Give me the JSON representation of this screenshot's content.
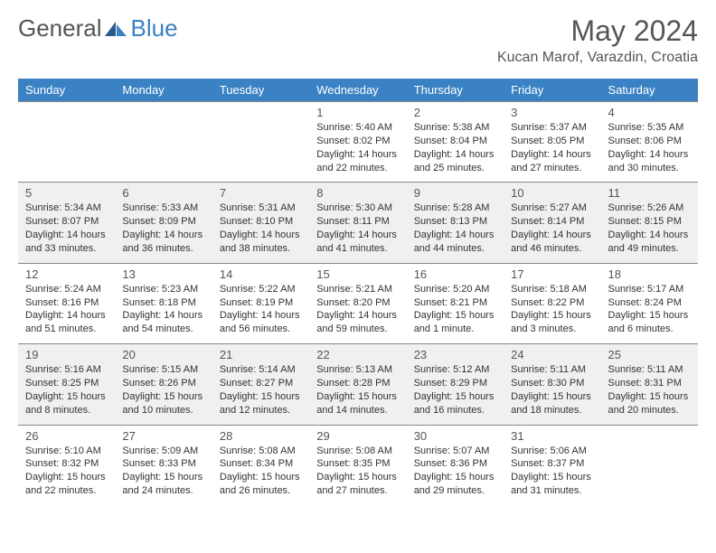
{
  "logo": {
    "general": "General",
    "blue": "Blue"
  },
  "title": "May 2024",
  "location": "Kucan Marof, Varazdin, Croatia",
  "dayHeaders": [
    "Sunday",
    "Monday",
    "Tuesday",
    "Wednesday",
    "Thursday",
    "Friday",
    "Saturday"
  ],
  "colors": {
    "headerBg": "#3b82c4",
    "headerText": "#ffffff",
    "altRowBg": "#f0f0f0",
    "textColor": "#333333",
    "titleColor": "#555555",
    "borderColor": "#888888"
  },
  "weeks": [
    [
      {
        "day": "",
        "sunrise": "",
        "sunset": "",
        "daylight": ""
      },
      {
        "day": "",
        "sunrise": "",
        "sunset": "",
        "daylight": ""
      },
      {
        "day": "",
        "sunrise": "",
        "sunset": "",
        "daylight": ""
      },
      {
        "day": "1",
        "sunrise": "Sunrise: 5:40 AM",
        "sunset": "Sunset: 8:02 PM",
        "daylight": "Daylight: 14 hours and 22 minutes."
      },
      {
        "day": "2",
        "sunrise": "Sunrise: 5:38 AM",
        "sunset": "Sunset: 8:04 PM",
        "daylight": "Daylight: 14 hours and 25 minutes."
      },
      {
        "day": "3",
        "sunrise": "Sunrise: 5:37 AM",
        "sunset": "Sunset: 8:05 PM",
        "daylight": "Daylight: 14 hours and 27 minutes."
      },
      {
        "day": "4",
        "sunrise": "Sunrise: 5:35 AM",
        "sunset": "Sunset: 8:06 PM",
        "daylight": "Daylight: 14 hours and 30 minutes."
      }
    ],
    [
      {
        "day": "5",
        "sunrise": "Sunrise: 5:34 AM",
        "sunset": "Sunset: 8:07 PM",
        "daylight": "Daylight: 14 hours and 33 minutes."
      },
      {
        "day": "6",
        "sunrise": "Sunrise: 5:33 AM",
        "sunset": "Sunset: 8:09 PM",
        "daylight": "Daylight: 14 hours and 36 minutes."
      },
      {
        "day": "7",
        "sunrise": "Sunrise: 5:31 AM",
        "sunset": "Sunset: 8:10 PM",
        "daylight": "Daylight: 14 hours and 38 minutes."
      },
      {
        "day": "8",
        "sunrise": "Sunrise: 5:30 AM",
        "sunset": "Sunset: 8:11 PM",
        "daylight": "Daylight: 14 hours and 41 minutes."
      },
      {
        "day": "9",
        "sunrise": "Sunrise: 5:28 AM",
        "sunset": "Sunset: 8:13 PM",
        "daylight": "Daylight: 14 hours and 44 minutes."
      },
      {
        "day": "10",
        "sunrise": "Sunrise: 5:27 AM",
        "sunset": "Sunset: 8:14 PM",
        "daylight": "Daylight: 14 hours and 46 minutes."
      },
      {
        "day": "11",
        "sunrise": "Sunrise: 5:26 AM",
        "sunset": "Sunset: 8:15 PM",
        "daylight": "Daylight: 14 hours and 49 minutes."
      }
    ],
    [
      {
        "day": "12",
        "sunrise": "Sunrise: 5:24 AM",
        "sunset": "Sunset: 8:16 PM",
        "daylight": "Daylight: 14 hours and 51 minutes."
      },
      {
        "day": "13",
        "sunrise": "Sunrise: 5:23 AM",
        "sunset": "Sunset: 8:18 PM",
        "daylight": "Daylight: 14 hours and 54 minutes."
      },
      {
        "day": "14",
        "sunrise": "Sunrise: 5:22 AM",
        "sunset": "Sunset: 8:19 PM",
        "daylight": "Daylight: 14 hours and 56 minutes."
      },
      {
        "day": "15",
        "sunrise": "Sunrise: 5:21 AM",
        "sunset": "Sunset: 8:20 PM",
        "daylight": "Daylight: 14 hours and 59 minutes."
      },
      {
        "day": "16",
        "sunrise": "Sunrise: 5:20 AM",
        "sunset": "Sunset: 8:21 PM",
        "daylight": "Daylight: 15 hours and 1 minute."
      },
      {
        "day": "17",
        "sunrise": "Sunrise: 5:18 AM",
        "sunset": "Sunset: 8:22 PM",
        "daylight": "Daylight: 15 hours and 3 minutes."
      },
      {
        "day": "18",
        "sunrise": "Sunrise: 5:17 AM",
        "sunset": "Sunset: 8:24 PM",
        "daylight": "Daylight: 15 hours and 6 minutes."
      }
    ],
    [
      {
        "day": "19",
        "sunrise": "Sunrise: 5:16 AM",
        "sunset": "Sunset: 8:25 PM",
        "daylight": "Daylight: 15 hours and 8 minutes."
      },
      {
        "day": "20",
        "sunrise": "Sunrise: 5:15 AM",
        "sunset": "Sunset: 8:26 PM",
        "daylight": "Daylight: 15 hours and 10 minutes."
      },
      {
        "day": "21",
        "sunrise": "Sunrise: 5:14 AM",
        "sunset": "Sunset: 8:27 PM",
        "daylight": "Daylight: 15 hours and 12 minutes."
      },
      {
        "day": "22",
        "sunrise": "Sunrise: 5:13 AM",
        "sunset": "Sunset: 8:28 PM",
        "daylight": "Daylight: 15 hours and 14 minutes."
      },
      {
        "day": "23",
        "sunrise": "Sunrise: 5:12 AM",
        "sunset": "Sunset: 8:29 PM",
        "daylight": "Daylight: 15 hours and 16 minutes."
      },
      {
        "day": "24",
        "sunrise": "Sunrise: 5:11 AM",
        "sunset": "Sunset: 8:30 PM",
        "daylight": "Daylight: 15 hours and 18 minutes."
      },
      {
        "day": "25",
        "sunrise": "Sunrise: 5:11 AM",
        "sunset": "Sunset: 8:31 PM",
        "daylight": "Daylight: 15 hours and 20 minutes."
      }
    ],
    [
      {
        "day": "26",
        "sunrise": "Sunrise: 5:10 AM",
        "sunset": "Sunset: 8:32 PM",
        "daylight": "Daylight: 15 hours and 22 minutes."
      },
      {
        "day": "27",
        "sunrise": "Sunrise: 5:09 AM",
        "sunset": "Sunset: 8:33 PM",
        "daylight": "Daylight: 15 hours and 24 minutes."
      },
      {
        "day": "28",
        "sunrise": "Sunrise: 5:08 AM",
        "sunset": "Sunset: 8:34 PM",
        "daylight": "Daylight: 15 hours and 26 minutes."
      },
      {
        "day": "29",
        "sunrise": "Sunrise: 5:08 AM",
        "sunset": "Sunset: 8:35 PM",
        "daylight": "Daylight: 15 hours and 27 minutes."
      },
      {
        "day": "30",
        "sunrise": "Sunrise: 5:07 AM",
        "sunset": "Sunset: 8:36 PM",
        "daylight": "Daylight: 15 hours and 29 minutes."
      },
      {
        "day": "31",
        "sunrise": "Sunrise: 5:06 AM",
        "sunset": "Sunset: 8:37 PM",
        "daylight": "Daylight: 15 hours and 31 minutes."
      },
      {
        "day": "",
        "sunrise": "",
        "sunset": "",
        "daylight": ""
      }
    ]
  ]
}
